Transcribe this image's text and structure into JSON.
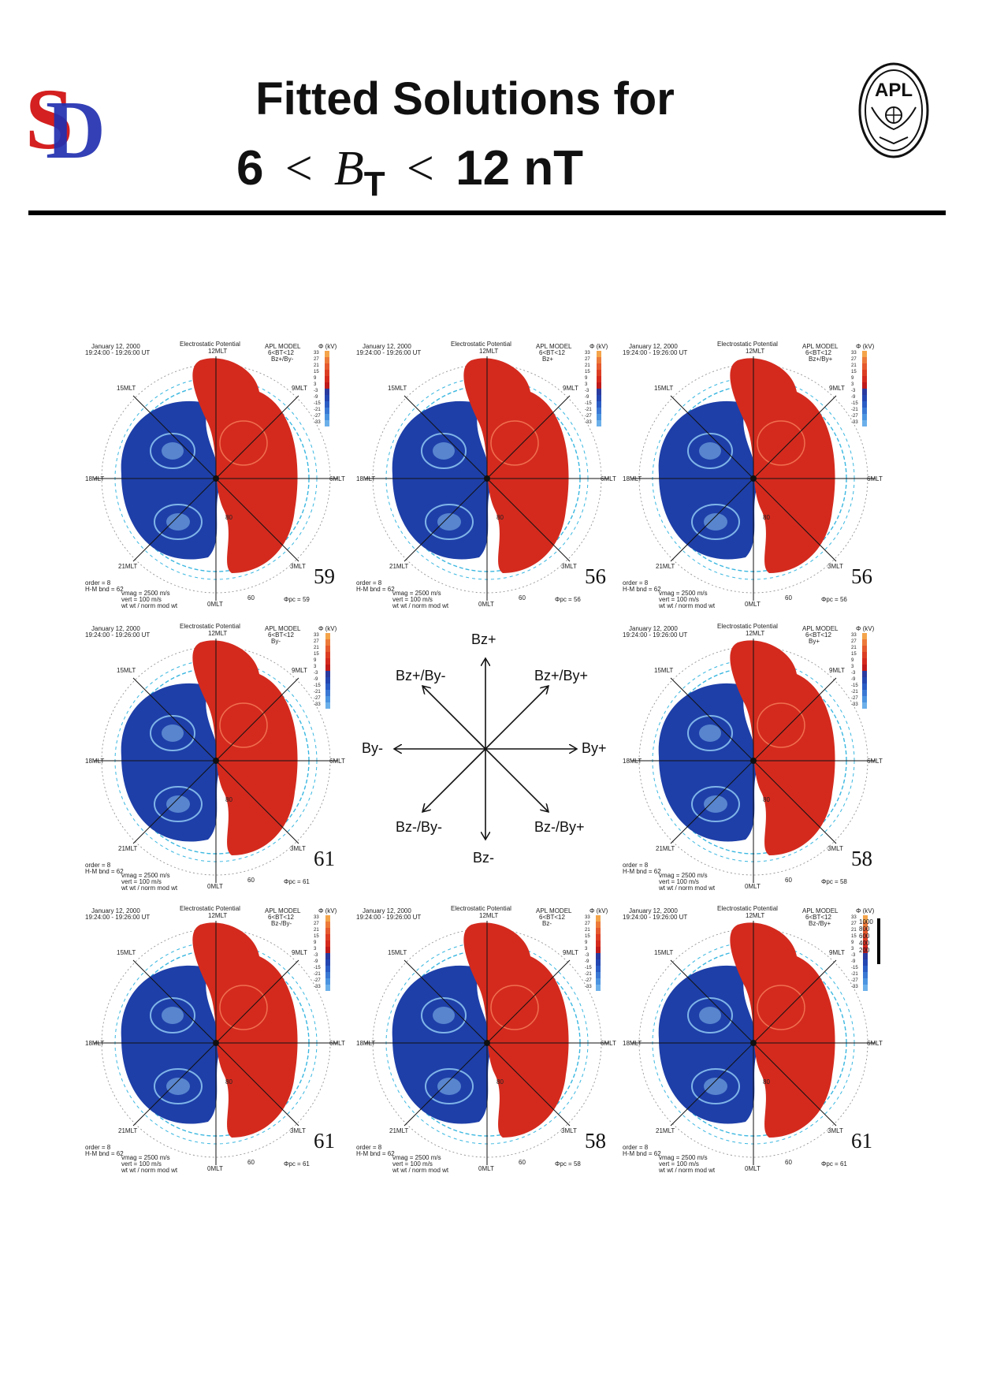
{
  "header": {
    "title_line1": "Fitted Solutions for",
    "title_line2": {
      "left": "6",
      "lt": "<",
      "symbol": "B",
      "subscript": "T",
      "right": "12 nT"
    },
    "logo_left": "SD",
    "logo_right": "APL"
  },
  "panels": [
    {
      "date": "January 12, 2000",
      "time": "19:24:00 - 19:26:00 UT",
      "model": "APL MODEL",
      "model_range": "6<BT<12",
      "model_dir": "Bz+/By-",
      "number": "59",
      "phi": "Φpc = 59"
    },
    {
      "date": "January 12, 2000",
      "time": "19:24:00 - 19:26:00 UT",
      "model": "APL MODEL",
      "model_range": "6<BT<12",
      "model_dir": "Bz+",
      "number": "56",
      "phi": "Φpc = 56"
    },
    {
      "date": "January 12, 2000",
      "time": "19:24:00 - 19:26:00 UT",
      "model": "APL MODEL",
      "model_range": "6<BT<12",
      "model_dir": "Bz+/By+",
      "number": "56",
      "phi": "Φpc = 56"
    },
    {
      "date": "January 12, 2000",
      "time": "19:24:00 - 19:26:00 UT",
      "model": "APL MODEL",
      "model_range": "6<BT<12",
      "model_dir": "By-",
      "number": "61",
      "phi": "Φpc = 61"
    },
    {
      "date": "January 12, 2000",
      "time": "19:24:00 - 19:26:00 UT",
      "model": "APL MODEL",
      "model_range": "6<BT<12",
      "model_dir": "By+",
      "number": "58",
      "phi": "Φpc = 58"
    },
    {
      "date": "January 12, 2000",
      "time": "19:24:00 - 19:26:00 UT",
      "model": "APL MODEL",
      "model_range": "6<BT<12",
      "model_dir": "Bz-/By-",
      "number": "61",
      "phi": "Φpc = 61"
    },
    {
      "date": "January 12, 2000",
      "time": "19:24:00 - 19:26:00 UT",
      "model": "APL MODEL",
      "model_range": "6<BT<12",
      "model_dir": "Bz-",
      "number": "58",
      "phi": "Φpc = 58"
    },
    {
      "date": "January 12, 2000",
      "time": "19:24:00 - 19:26:00 UT",
      "model": "APL MODEL",
      "model_range": "6<BT<12",
      "model_dir": "Bz-/By+",
      "number": "61",
      "phi": "Φpc = 61"
    }
  ],
  "panel_common": {
    "heading": "Electrostatic Potential",
    "noon": "12MLT",
    "midnight": "0MLT",
    "dawn": "6MLT",
    "dusk": "18MLT",
    "mlt15": "15MLT",
    "mlt9": "9MLT",
    "mlt21": "21MLT",
    "mlt3": "3MLT",
    "lat60": "60",
    "lat80": "80",
    "unit": "Φ (kV)",
    "colorbar_ticks": [
      "33",
      "27",
      "21",
      "15",
      "9",
      "3",
      "-3",
      "-9",
      "-15",
      "-21",
      "-27",
      "-33"
    ],
    "stats1": "order = 8",
    "stats2": "H-M bnd = 62",
    "stats3": "vmag = 2500 m/s",
    "stats4": "vert = 100 m/s",
    "stats5": "wt wt / norm mod wt",
    "colors": {
      "positive": "#d42a1e",
      "negative": "#1e3fa8",
      "negative_light": "#7fb4e8",
      "ring": "#3ab7e0"
    }
  },
  "scale_legend": [
    "1000",
    "800",
    "600",
    "400",
    "200"
  ],
  "diagram": {
    "top": "Bz+",
    "bottom": "Bz-",
    "left": "By-",
    "right": "By+",
    "upper_left": "Bz+/By-",
    "upper_right": "Bz+/By+",
    "lower_left": "Bz-/By-",
    "lower_right": "Bz-/By+"
  }
}
